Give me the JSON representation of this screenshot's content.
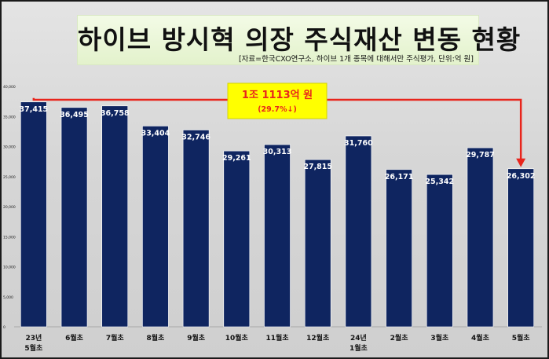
{
  "title": "하이브 방시혁 의장 주식재산 변동 현황",
  "source_note": "[자료=한국CXO연구소, 하이브 1개 종목에 대해서만 주식평가, 단위:억 원]",
  "annotation": {
    "main": "1조 1113억 원",
    "sub": "(29.7%↓)"
  },
  "colors": {
    "bar": "#0f2560",
    "bracket": "#e8251c",
    "callout_fill": "#ffff00",
    "callout_text": "#e8251c",
    "axis_text": "#222222"
  },
  "chart_data": {
    "type": "bar",
    "title": "하이브 방시혁 의장 주식재산 변동 현황",
    "categories": [
      "23년\n5월초",
      "6월초",
      "7월초",
      "8월초",
      "9월초",
      "10월초",
      "11월초",
      "12월초",
      "24년\n1월초",
      "2월초",
      "3월초",
      "4월초",
      "5월초"
    ],
    "values": [
      37415,
      36495,
      36758,
      33404,
      32746,
      29261,
      30313,
      27815,
      31760,
      26171,
      25342,
      29787,
      26302
    ],
    "value_labels": [
      "37,415",
      "36,495",
      "36,758",
      "33,404",
      "32,746",
      "29,261",
      "30,313",
      "27,815",
      "31,760",
      "26,171",
      "25,342",
      "29,787",
      "26,302"
    ],
    "yticks": [
      "0",
      "5,000",
      "10,000",
      "15,000",
      "20,000",
      "25,000",
      "30,000",
      "35,000",
      "40,000"
    ],
    "ylim": [
      0,
      40000
    ],
    "grid": false,
    "legend": "none"
  }
}
